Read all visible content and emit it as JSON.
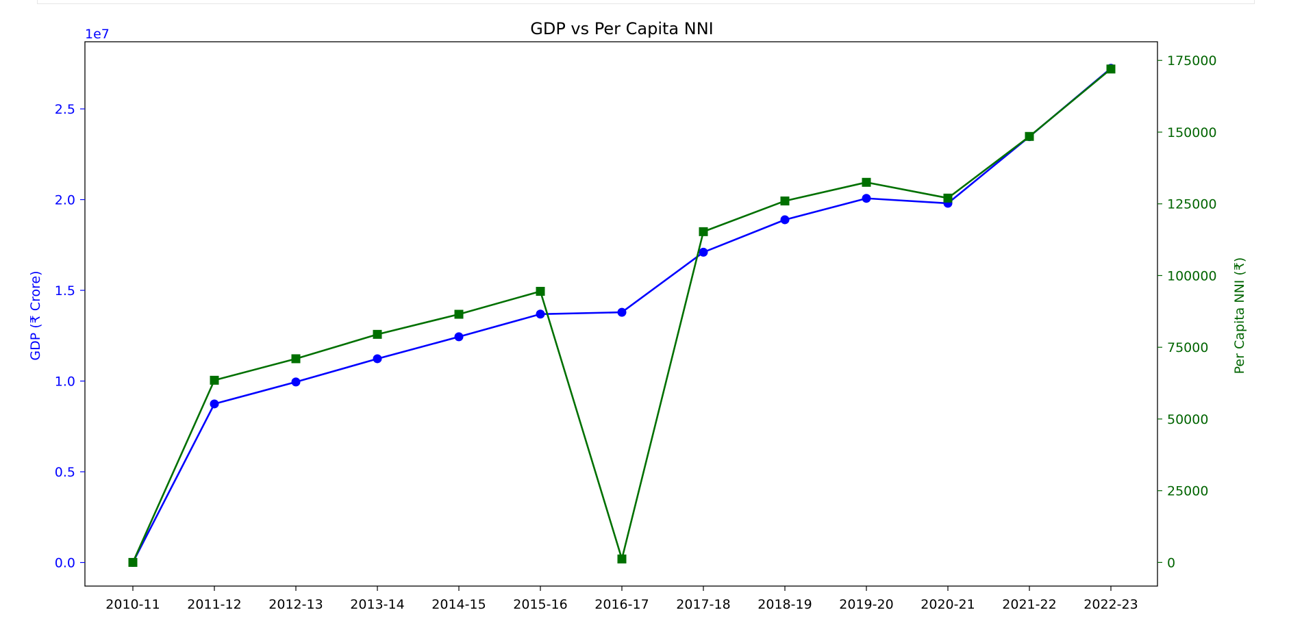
{
  "chart_data": {
    "type": "line",
    "title": "GDP vs Per Capita NNI",
    "categories": [
      "2010-11",
      "2011-12",
      "2012-13",
      "2013-14",
      "2014-15",
      "2015-16",
      "2016-17",
      "2017-18",
      "2018-19",
      "2019-20",
      "2020-21",
      "2021-22",
      "2022-23"
    ],
    "y_left": {
      "label": "GDP (₹ Crore)",
      "offset_text": "1e7",
      "scale": 10000000,
      "ylim": [
        -1300000,
        28700000
      ],
      "ticks": [
        0,
        5000000,
        10000000,
        15000000,
        20000000,
        25000000
      ],
      "tick_labels": [
        "0.0",
        "0.5",
        "1.0",
        "1.5",
        "2.0",
        "2.5"
      ],
      "color": "#0000ff"
    },
    "y_right": {
      "label": "Per Capita NNI (₹)",
      "ylim": [
        -8250,
        181500
      ],
      "ticks": [
        0,
        25000,
        50000,
        75000,
        100000,
        125000,
        150000,
        175000
      ],
      "tick_labels": [
        "0",
        "25000",
        "50000",
        "75000",
        "100000",
        "125000",
        "150000",
        "175000"
      ],
      "color": "#006400"
    },
    "series": [
      {
        "axis": "left",
        "color": "#0000ff",
        "marker": "circle",
        "values": [
          0,
          8740000,
          9950000,
          11230000,
          12440000,
          13690000,
          13790000,
          17100000,
          18890000,
          20070000,
          19800000,
          23470000,
          27240000
        ]
      },
      {
        "axis": "right",
        "color": "#007000",
        "marker": "square",
        "values": [
          0,
          63500,
          71000,
          79500,
          86500,
          94500,
          1200,
          115300,
          126000,
          132500,
          127000,
          148500,
          172000
        ]
      }
    ],
    "grid": false,
    "legend": "none"
  }
}
